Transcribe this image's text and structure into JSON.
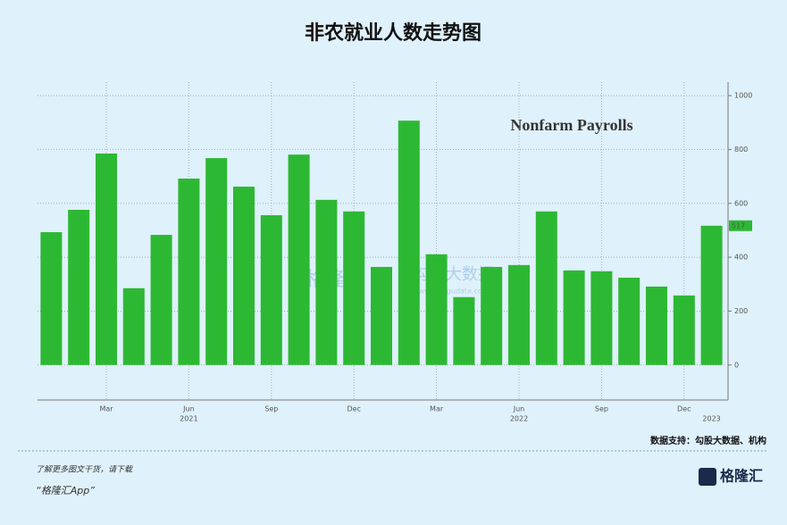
{
  "chart_data": {
    "type": "bar",
    "title": "非农就业人数走势图",
    "annotation": "Nonfarm Payrolls",
    "categories": [
      null,
      null,
      "Mar",
      null,
      null,
      "Jun",
      null,
      null,
      "Sep",
      null,
      null,
      "Dec",
      null,
      null,
      "Mar",
      null,
      null,
      "Jun",
      null,
      null,
      "Sep",
      null,
      null,
      "Dec",
      null
    ],
    "years": [
      null,
      null,
      null,
      null,
      null,
      "2021",
      null,
      null,
      null,
      null,
      null,
      null,
      null,
      null,
      null,
      null,
      null,
      "2022",
      null,
      null,
      null,
      null,
      null,
      null,
      "2023"
    ],
    "values": [
      493,
      576,
      785,
      285,
      483,
      692,
      768,
      662,
      556,
      781,
      613,
      570,
      364,
      907,
      411,
      252,
      364,
      371,
      570,
      351,
      348,
      324,
      291,
      258,
      517
    ],
    "color": "#2db833",
    "ylim": [
      -130,
      1050
    ],
    "yticks": [
      0,
      200,
      400,
      600,
      800,
      1000
    ],
    "grid": true,
    "source": "数据支持：勾股大数据、机构",
    "footer_line1": "了解更多图文干货，请下载",
    "footer_line2": "“格隆汇App”",
    "logo": "格隆汇",
    "watermarks": [
      "格隆汇",
      "勾股大数据",
      "www.gogudata.com"
    ]
  }
}
